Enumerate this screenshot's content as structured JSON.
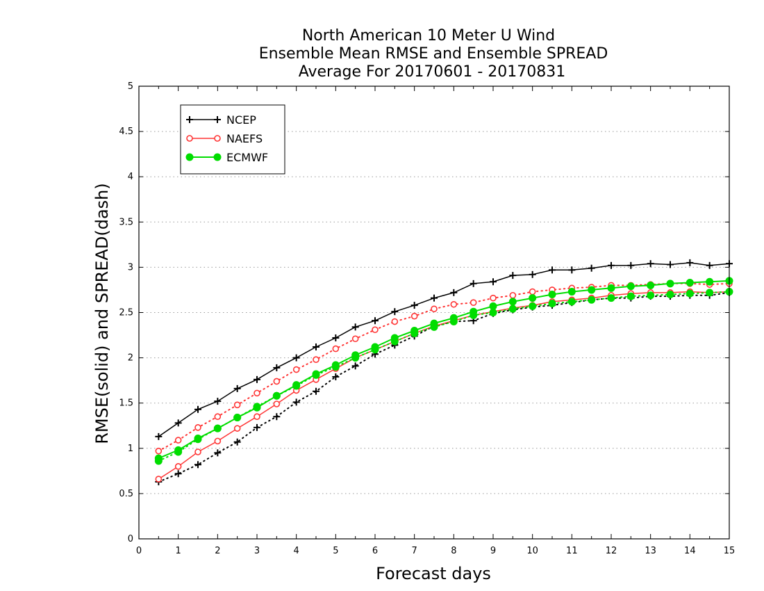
{
  "chart_data": {
    "type": "line",
    "title": [
      "North American 10 Meter U Wind",
      "Ensemble Mean RMSE and Ensemble SPREAD",
      "Average For 20170601 - 20170831"
    ],
    "xlabel": "Forecast days",
    "ylabel": "RMSE(solid) and SPREAD(dash)",
    "xlim": [
      0,
      15
    ],
    "ylim": [
      0,
      5
    ],
    "xticks": [
      "0",
      "1",
      "2",
      "3",
      "4",
      "5",
      "6",
      "7",
      "8",
      "9",
      "10",
      "11",
      "12",
      "13",
      "14",
      "15"
    ],
    "yticks": [
      "0",
      "0.5",
      "1",
      "1.5",
      "2",
      "2.5",
      "3",
      "3.5",
      "4",
      "4.5",
      "5"
    ],
    "grid": "horizontal dotted",
    "legend_position": "top-left",
    "x": [
      0.5,
      1,
      1.5,
      2,
      2.5,
      3,
      3.5,
      4,
      4.5,
      5,
      5.5,
      6,
      6.5,
      7,
      7.5,
      8,
      8.5,
      9,
      9.5,
      10,
      10.5,
      11,
      11.5,
      12,
      12.5,
      13,
      13.5,
      14,
      14.5,
      15
    ],
    "series": [
      {
        "name": "NCEP",
        "color": "#000000",
        "marker": "plus",
        "rmse": [
          1.13,
          1.28,
          1.43,
          1.52,
          1.66,
          1.76,
          1.89,
          2.0,
          2.12,
          2.22,
          2.34,
          2.41,
          2.51,
          2.58,
          2.66,
          2.72,
          2.82,
          2.84,
          2.91,
          2.92,
          2.97,
          2.97,
          2.99,
          3.02,
          3.02,
          3.04,
          3.03,
          3.05,
          3.02,
          3.04
        ],
        "spread": [
          0.63,
          0.72,
          0.82,
          0.95,
          1.07,
          1.23,
          1.35,
          1.51,
          1.63,
          1.79,
          1.91,
          2.04,
          2.14,
          2.24,
          2.35,
          2.4,
          2.41,
          2.49,
          2.53,
          2.56,
          2.58,
          2.61,
          2.64,
          2.66,
          2.66,
          2.68,
          2.68,
          2.69,
          2.69,
          2.72
        ]
      },
      {
        "name": "NAEFS",
        "color": "#ff3333",
        "marker": "open-circle",
        "rmse": [
          0.66,
          0.8,
          0.96,
          1.08,
          1.22,
          1.35,
          1.49,
          1.64,
          1.76,
          1.88,
          2.0,
          2.09,
          2.18,
          2.27,
          2.35,
          2.41,
          2.47,
          2.51,
          2.55,
          2.58,
          2.62,
          2.64,
          2.66,
          2.69,
          2.71,
          2.72,
          2.72,
          2.73,
          2.72,
          2.73
        ],
        "spread": [
          0.97,
          1.09,
          1.23,
          1.35,
          1.48,
          1.61,
          1.74,
          1.87,
          1.98,
          2.1,
          2.21,
          2.31,
          2.4,
          2.46,
          2.54,
          2.59,
          2.61,
          2.66,
          2.69,
          2.73,
          2.75,
          2.77,
          2.78,
          2.8,
          2.8,
          2.81,
          2.82,
          2.82,
          2.81,
          2.82
        ]
      },
      {
        "name": "ECMWF",
        "color": "#00dd00",
        "marker": "filled-circle",
        "rmse": [
          0.89,
          0.98,
          1.11,
          1.22,
          1.34,
          1.45,
          1.58,
          1.7,
          1.82,
          1.92,
          2.03,
          2.12,
          2.22,
          2.3,
          2.38,
          2.44,
          2.51,
          2.57,
          2.62,
          2.66,
          2.7,
          2.73,
          2.75,
          2.77,
          2.79,
          2.8,
          2.82,
          2.83,
          2.84,
          2.85
        ],
        "spread": [
          0.86,
          0.96,
          1.1,
          1.22,
          1.34,
          1.46,
          1.58,
          1.69,
          1.81,
          1.9,
          2.0,
          2.09,
          2.18,
          2.27,
          2.34,
          2.4,
          2.47,
          2.5,
          2.54,
          2.57,
          2.6,
          2.62,
          2.64,
          2.66,
          2.68,
          2.69,
          2.7,
          2.71,
          2.72,
          2.73
        ]
      }
    ]
  }
}
